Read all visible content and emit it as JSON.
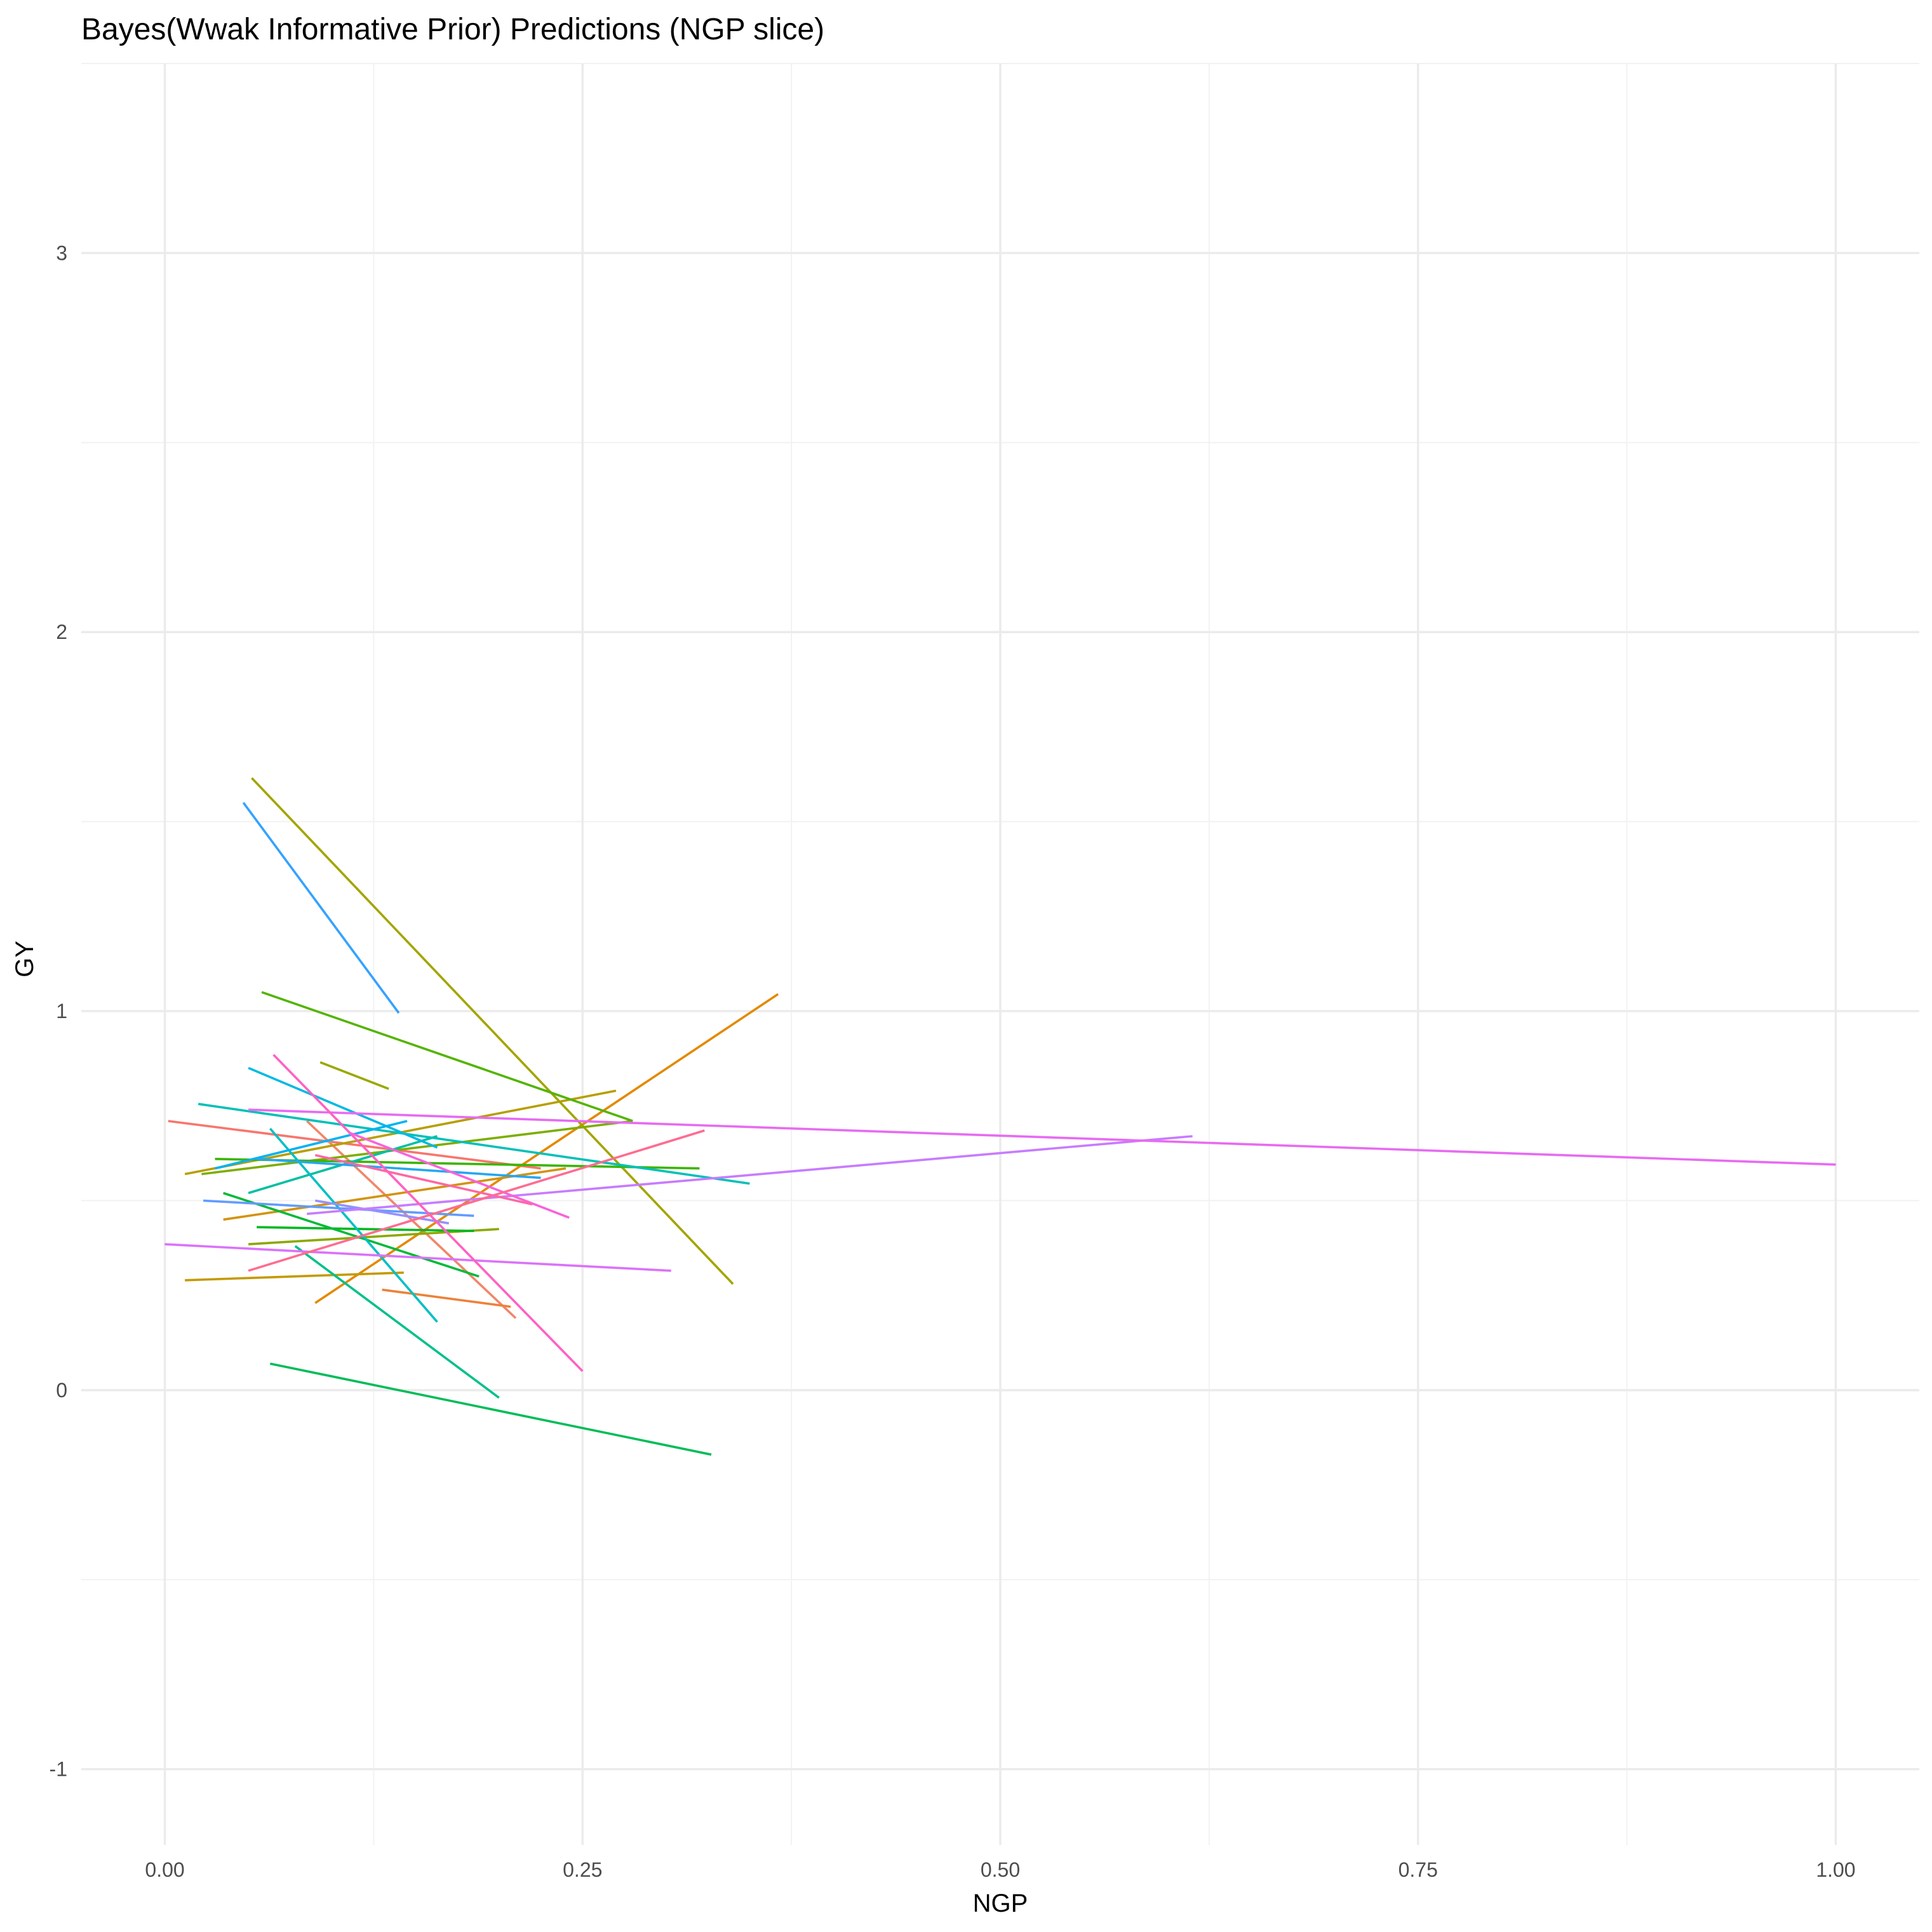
{
  "chart_data": {
    "type": "line",
    "title": "Bayes(Wwak Informative Prior)  Predictions (NGP slice)",
    "xlabel": "NGP",
    "ylabel": "GY",
    "xlim": [
      -0.05,
      1.05
    ],
    "ylim": [
      -1.2,
      3.5
    ],
    "x_ticks": [
      0.0,
      0.25,
      0.5,
      0.75,
      1.0
    ],
    "x_tick_labels": [
      "0.00",
      "0.25",
      "0.50",
      "0.75",
      "1.00"
    ],
    "y_ticks": [
      -1,
      0,
      1,
      2,
      3
    ],
    "y_tick_labels": [
      "-1",
      "0",
      "1",
      "2",
      "3"
    ],
    "grid": true,
    "legend": "none",
    "series": [
      {
        "color": "#F8766D",
        "x": [
          0.002,
          0.225
        ],
        "y": [
          0.71,
          0.585
        ]
      },
      {
        "color": "#F2866A",
        "x": [
          0.085,
          0.21
        ],
        "y": [
          0.71,
          0.19
        ]
      },
      {
        "color": "#EC8239",
        "x": [
          0.13,
          0.207
        ],
        "y": [
          0.265,
          0.22
        ]
      },
      {
        "color": "#E38900",
        "x": [
          0.09,
          0.367
        ],
        "y": [
          0.23,
          1.045
        ]
      },
      {
        "color": "#D3930F",
        "x": [
          0.035,
          0.24
        ],
        "y": [
          0.45,
          0.585
        ]
      },
      {
        "color": "#C49A00",
        "x": [
          0.012,
          0.143
        ],
        "y": [
          0.29,
          0.31
        ]
      },
      {
        "color": "#B79F00",
        "x": [
          0.012,
          0.27
        ],
        "y": [
          0.57,
          0.79
        ]
      },
      {
        "color": "#A3A500",
        "x": [
          0.052,
          0.34
        ],
        "y": [
          1.615,
          0.28
        ]
      },
      {
        "color": "#99A800",
        "x": [
          0.093,
          0.134
        ],
        "y": [
          0.865,
          0.795
        ]
      },
      {
        "color": "#8BA900",
        "x": [
          0.05,
          0.2
        ],
        "y": [
          0.385,
          0.425
        ]
      },
      {
        "color": "#7CAE00",
        "x": [
          0.022,
          0.28
        ],
        "y": [
          0.57,
          0.71
        ]
      },
      {
        "color": "#53B400",
        "x": [
          0.058,
          0.28
        ],
        "y": [
          1.05,
          0.71
        ]
      },
      {
        "color": "#3CB500",
        "x": [
          0.03,
          0.32
        ],
        "y": [
          0.61,
          0.585
        ]
      },
      {
        "color": "#00B81F",
        "x": [
          0.055,
          0.185
        ],
        "y": [
          0.43,
          0.42
        ]
      },
      {
        "color": "#00BA38",
        "x": [
          0.035,
          0.188
        ],
        "y": [
          0.52,
          0.3
        ]
      },
      {
        "color": "#00BC59",
        "x": [
          0.063,
          0.327
        ],
        "y": [
          0.07,
          -0.17
        ]
      },
      {
        "color": "#00C08B",
        "x": [
          0.078,
          0.2
        ],
        "y": [
          0.38,
          -0.02
        ]
      },
      {
        "color": "#00BFA2",
        "x": [
          0.05,
          0.163
        ],
        "y": [
          0.52,
          0.67
        ]
      },
      {
        "color": "#00BFC4",
        "x": [
          0.063,
          0.163
        ],
        "y": [
          0.69,
          0.18
        ]
      },
      {
        "color": "#00C0B8",
        "x": [
          0.02,
          0.35
        ],
        "y": [
          0.755,
          0.545
        ]
      },
      {
        "color": "#00B9E3",
        "x": [
          0.05,
          0.163
        ],
        "y": [
          0.85,
          0.64
        ]
      },
      {
        "color": "#00B2F3",
        "x": [
          0.03,
          0.145
        ],
        "y": [
          0.585,
          0.71
        ]
      },
      {
        "color": "#25A7F0",
        "x": [
          0.055,
          0.225
        ],
        "y": [
          0.61,
          0.56
        ]
      },
      {
        "color": "#35A2FF",
        "x": [
          0.047,
          0.14
        ],
        "y": [
          1.55,
          0.995
        ]
      },
      {
        "color": "#619CFF",
        "x": [
          0.023,
          0.185
        ],
        "y": [
          0.5,
          0.46
        ]
      },
      {
        "color": "#9590FF",
        "x": [
          0.09,
          0.17
        ],
        "y": [
          0.5,
          0.44
        ]
      },
      {
        "color": "#C77CFF",
        "x": [
          0.085,
          0.615
        ],
        "y": [
          0.465,
          0.67
        ]
      },
      {
        "color": "#DB72FB",
        "x": [
          0.0,
          0.303
        ],
        "y": [
          0.385,
          0.315
        ]
      },
      {
        "color": "#E76BF3",
        "x": [
          0.05,
          1.0
        ],
        "y": [
          0.74,
          0.595
        ]
      },
      {
        "color": "#FF61C3",
        "x": [
          0.065,
          0.25
        ],
        "y": [
          0.885,
          0.05
        ]
      },
      {
        "color": "#FA62DB",
        "x": [
          0.11,
          0.242
        ],
        "y": [
          0.68,
          0.455
        ]
      },
      {
        "color": "#FF6C91",
        "x": [
          0.05,
          0.323
        ],
        "y": [
          0.315,
          0.685
        ]
      },
      {
        "color": "#FF67A4",
        "x": [
          0.09,
          0.22
        ],
        "y": [
          0.62,
          0.49
        ]
      }
    ]
  }
}
